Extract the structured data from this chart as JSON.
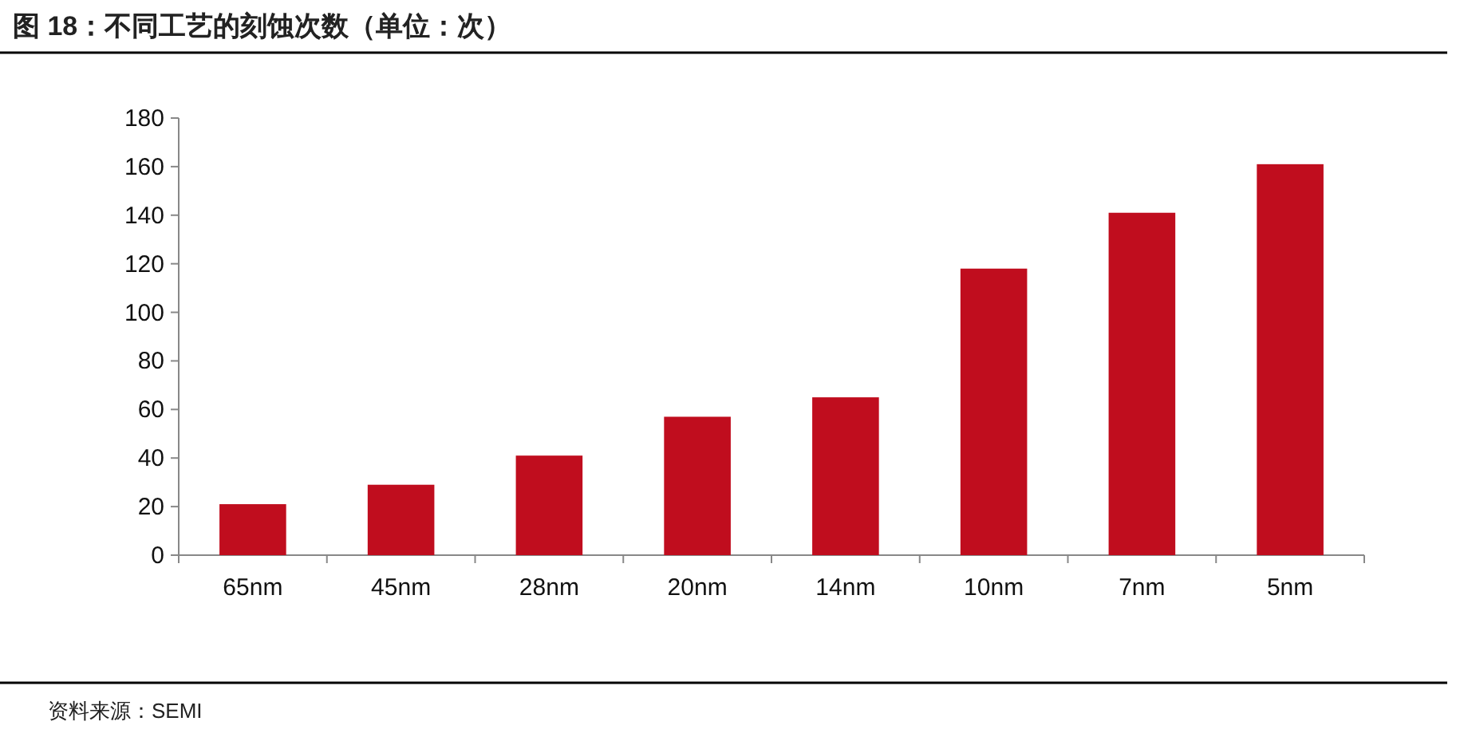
{
  "chart_data": {
    "type": "bar",
    "title": "图 18：不同工艺的刻蚀次数（单位：次）",
    "categories": [
      "65nm",
      "45nm",
      "28nm",
      "20nm",
      "14nm",
      "10nm",
      "7nm",
      "5nm"
    ],
    "values": [
      21,
      29,
      41,
      57,
      65,
      118,
      141,
      161
    ],
    "color": "#c00d1e",
    "ylim": [
      0,
      180
    ],
    "yticks": [
      0,
      20,
      40,
      60,
      80,
      100,
      120,
      140,
      160,
      180
    ],
    "grid": false,
    "annotations": [
      "资料来源：SEMI"
    ]
  }
}
